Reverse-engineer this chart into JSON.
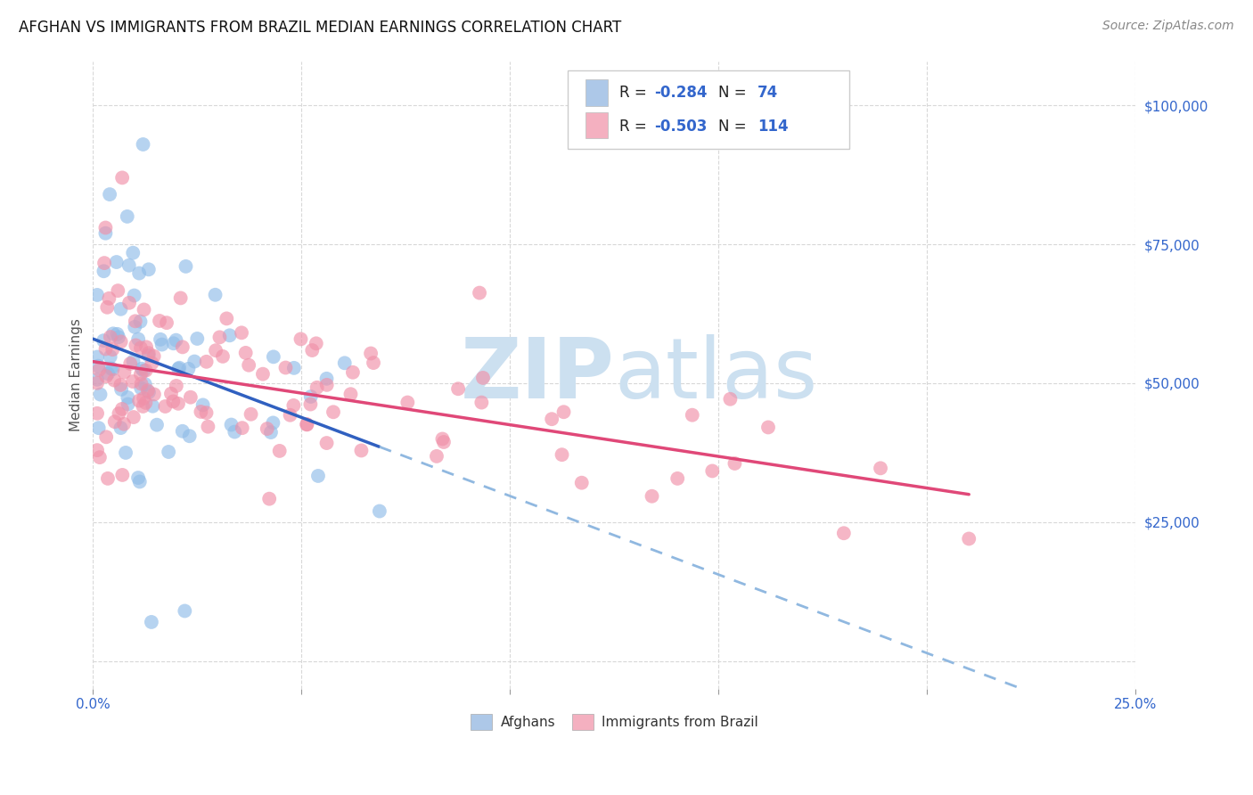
{
  "title": "AFGHAN VS IMMIGRANTS FROM BRAZIL MEDIAN EARNINGS CORRELATION CHART",
  "source": "Source: ZipAtlas.com",
  "ylabel": "Median Earnings",
  "yticks": [
    0,
    25000,
    50000,
    75000,
    100000
  ],
  "xmin": 0.0,
  "xmax": 0.25,
  "ymin": -5000,
  "ymax": 108000,
  "legend_color1": "#adc8e8",
  "legend_color2": "#f4b0c0",
  "scatter_color1": "#90bce8",
  "scatter_color2": "#f090a8",
  "trendline_color1": "#3060c0",
  "trendline_color2": "#e04878",
  "trendline_dashed_color": "#90b8e0",
  "watermark_color": "#cce0f0",
  "footer_label1": "Afghans",
  "footer_label2": "Immigrants from Brazil",
  "title_fontsize": 12,
  "source_fontsize": 10,
  "background_color": "#ffffff",
  "grid_color": "#d8d8d8",
  "blue_color": "#3366cc",
  "text_color": "#222222",
  "r1": "-0.284",
  "n1": "74",
  "r2": "-0.503",
  "n2": "114"
}
